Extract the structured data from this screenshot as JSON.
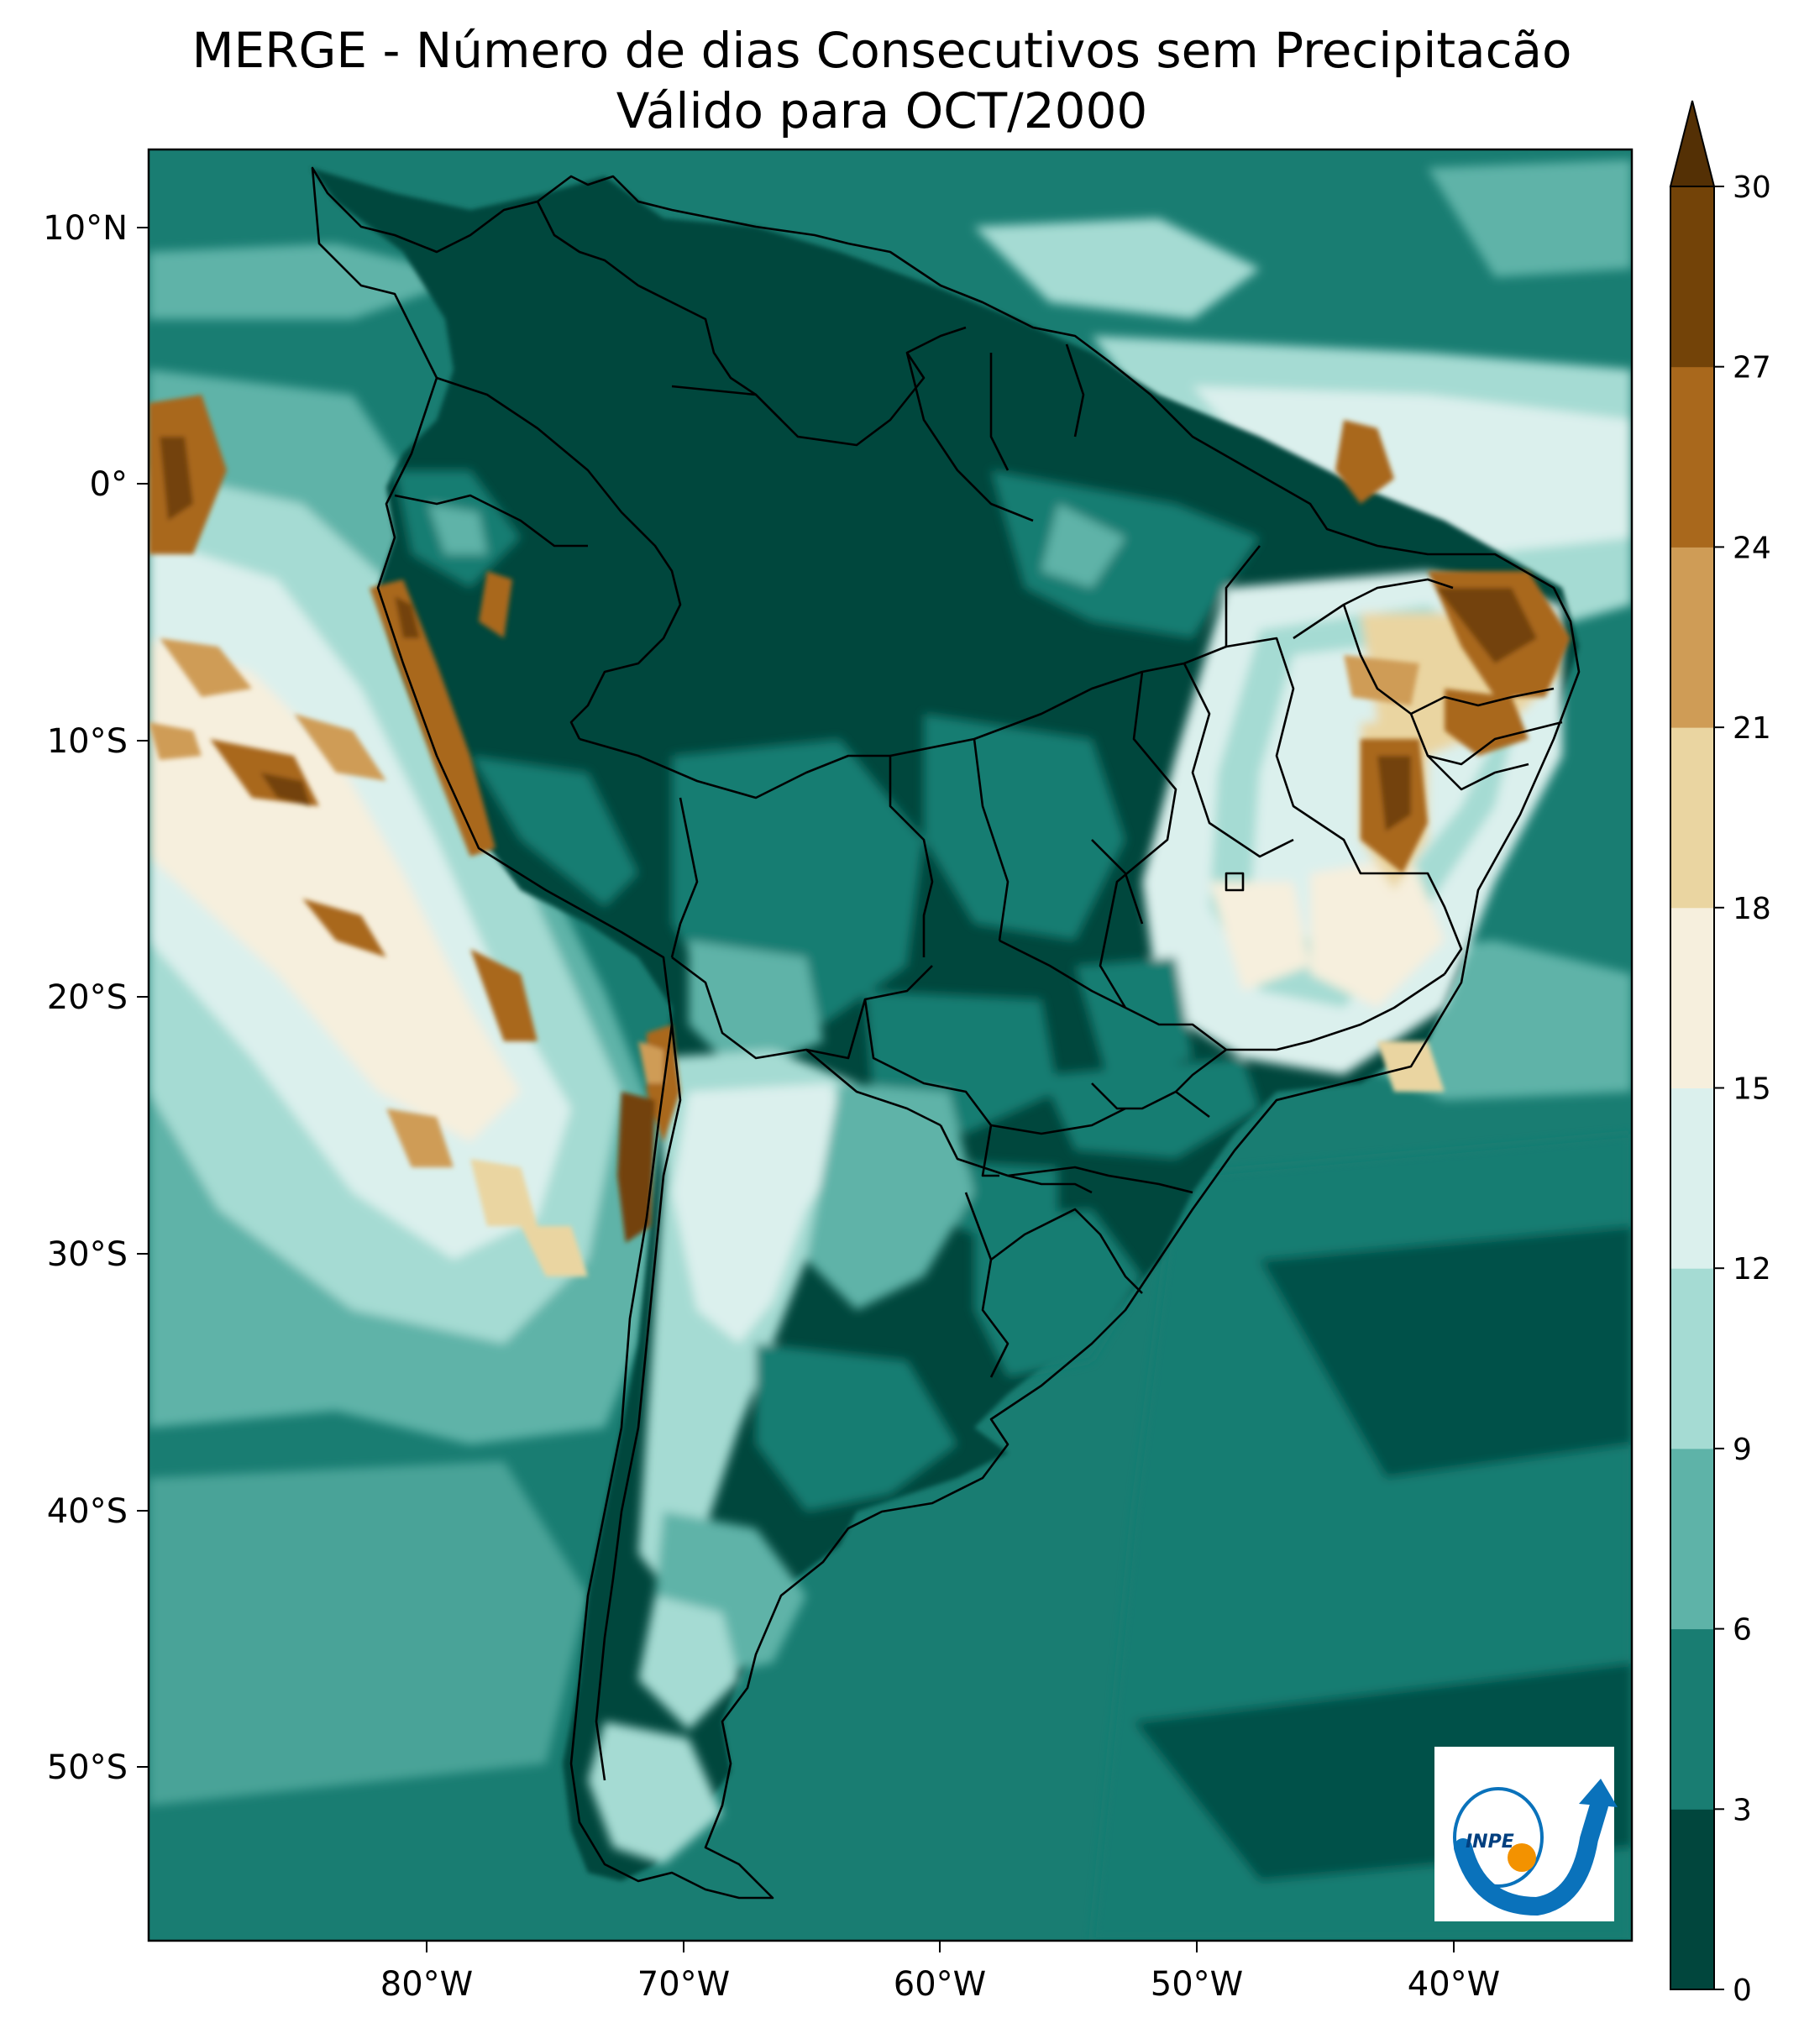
{
  "title_line1": "MERGE - Número de dias Consecutivos sem Precipitacão",
  "title_line2": "Válido para OCT/2000",
  "lat_labels": [
    "10°N",
    "0°",
    "10°S",
    "20°S",
    "30°S",
    "40°S",
    "50°S"
  ],
  "lon_labels": [
    "80°W",
    "70°W",
    "60°W",
    "50°W",
    "40°W"
  ],
  "colorbar": {
    "levels": [
      "0",
      "3",
      "6",
      "9",
      "12",
      "15",
      "18",
      "21",
      "24",
      "27",
      "30"
    ],
    "colors": [
      "#01463d",
      "#197d72",
      "#5eb3a8",
      "#a5dbd3",
      "#dbf0ed",
      "#f6efdd",
      "#ead5a1",
      "#cf9c56",
      "#a9681c",
      "#734308"
    ],
    "extend_color": "#543005"
  },
  "logo": {
    "text": "INPE",
    "ring_color": "#0a72bb",
    "dot_color": "#f39200"
  }
}
